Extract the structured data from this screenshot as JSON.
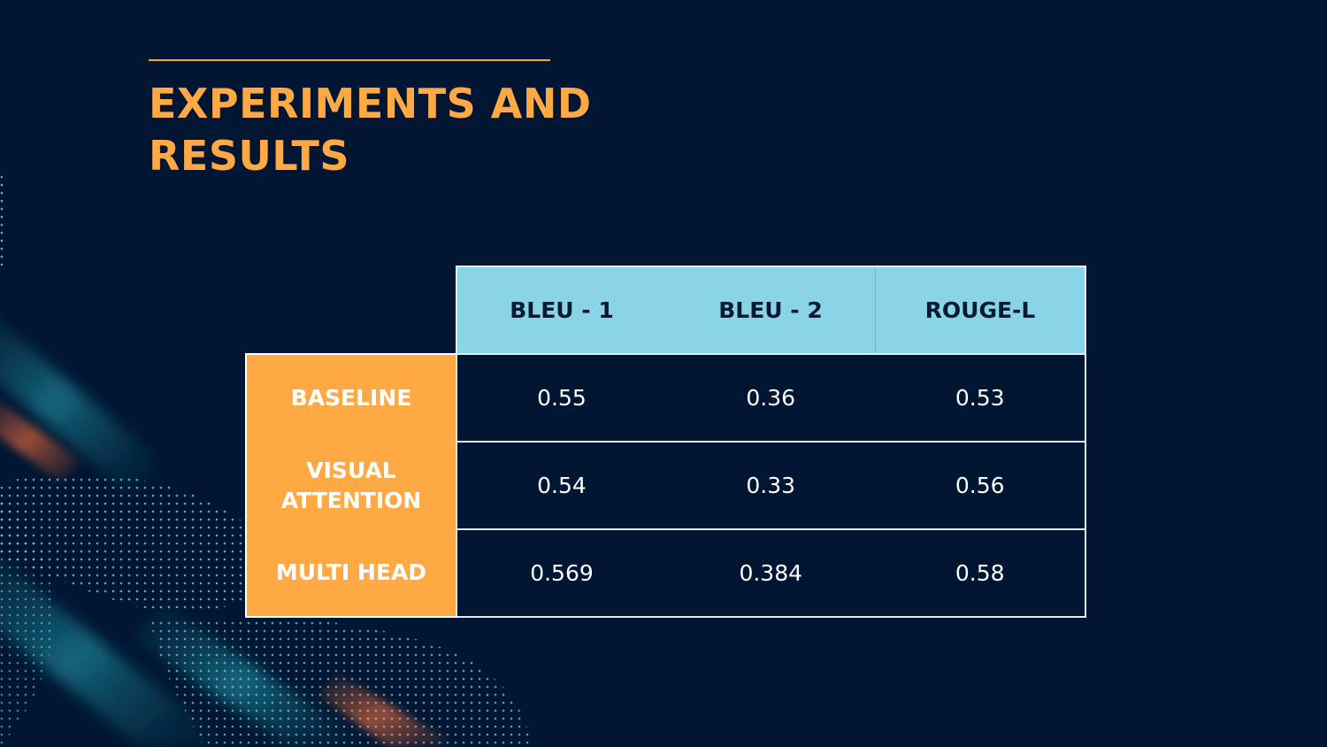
{
  "slide": {
    "title": "EXPERIMENTS AND RESULTS",
    "accent_color": "#ffa944",
    "background_color": "#011633"
  },
  "table": {
    "columns": [
      "BLEU - 1",
      "BLEU - 2",
      "ROUGE-L"
    ],
    "rows": [
      {
        "label": "BASELINE",
        "values": [
          "0.55",
          "0.36",
          "0.53"
        ]
      },
      {
        "label": "VISUAL ATTENTION",
        "values": [
          "0.54",
          "0.33",
          "0.56"
        ]
      },
      {
        "label": "MULTI HEAD",
        "values": [
          "0.569",
          "0.384",
          "0.58"
        ]
      }
    ],
    "header_color": "#89d4e6",
    "row_label_color": "#ffa944"
  }
}
